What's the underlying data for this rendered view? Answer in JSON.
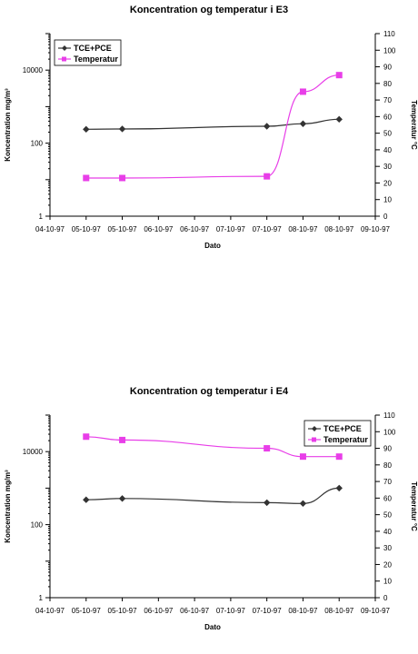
{
  "chart_data": [
    {
      "type": "line",
      "title": "Koncentration og temperatur i E3",
      "xlabel": "Dato",
      "ylabel": "Koncentration mg/m³",
      "y2label": "Temperatur °C",
      "x_ticks": [
        "04-10-97",
        "05-10-97",
        "05-10-97",
        "06-10-97",
        "06-10-97",
        "07-10-97",
        "07-10-97",
        "08-10-97",
        "08-10-97",
        "09-10-97"
      ],
      "y_left_ticks": [
        "1",
        "100",
        "10000"
      ],
      "y_left_ticks_values": [
        1,
        100,
        10000
      ],
      "y_left_lim": [
        1,
        100000
      ],
      "y_left_scale": "log",
      "y_right_ticks": [
        "0",
        "10",
        "20",
        "30",
        "40",
        "50",
        "60",
        "70",
        "80",
        "90",
        "100",
        "110"
      ],
      "y_right_lim": [
        0,
        110
      ],
      "legend_position": "top-left",
      "grid": false,
      "series": [
        {
          "name": "TCE+PCE",
          "axis": "left",
          "color": "#333333",
          "marker": "diamond",
          "x": [
            1,
            2,
            6,
            7,
            8
          ],
          "values": [
            240,
            245,
            290,
            340,
            450
          ]
        },
        {
          "name": "Temperatur",
          "axis": "right",
          "color": "#e83ee8",
          "marker": "square",
          "x": [
            1,
            2,
            6,
            7,
            8
          ],
          "values": [
            23,
            23,
            24,
            75,
            85
          ]
        }
      ]
    },
    {
      "type": "line",
      "title": "Koncentration og temperatur i E4",
      "xlabel": "Dato",
      "ylabel": "Koncentration mg/m³",
      "y2label": "Temperatur °C",
      "x_ticks": [
        "04-10-97",
        "05-10-97",
        "05-10-97",
        "06-10-97",
        "06-10-97",
        "07-10-97",
        "07-10-97",
        "08-10-97",
        "08-10-97",
        "09-10-97"
      ],
      "y_left_ticks": [
        "1",
        "100",
        "10000"
      ],
      "y_left_ticks_values": [
        1,
        100,
        10000
      ],
      "y_left_lim": [
        1,
        100000
      ],
      "y_left_scale": "log",
      "y_right_ticks": [
        "0",
        "10",
        "20",
        "30",
        "40",
        "50",
        "60",
        "70",
        "80",
        "90",
        "100",
        "110"
      ],
      "y_right_lim": [
        0,
        110
      ],
      "legend_position": "top-right",
      "grid": false,
      "series": [
        {
          "name": "TCE+PCE",
          "axis": "left",
          "color": "#333333",
          "marker": "diamond",
          "x": [
            1,
            2,
            6,
            7,
            8
          ],
          "values": [
            480,
            520,
            400,
            380,
            1000
          ]
        },
        {
          "name": "Temperatur",
          "axis": "right",
          "color": "#e83ee8",
          "marker": "square",
          "x": [
            1,
            2,
            6,
            7,
            8
          ],
          "values": [
            97,
            95,
            90,
            85,
            85
          ]
        }
      ]
    }
  ]
}
